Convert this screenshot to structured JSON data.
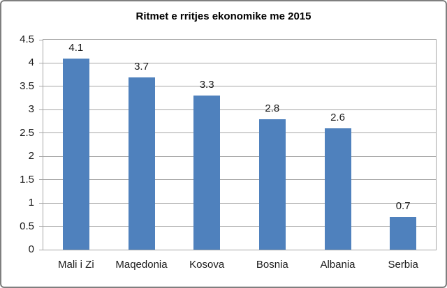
{
  "chart_data": {
    "type": "bar",
    "title": "Ritmet e rritjes ekonomike me 2015",
    "categories": [
      "Mali i Zi",
      "Maqedonia",
      "Kosova",
      "Bosnia",
      "Albania",
      "Serbia"
    ],
    "values": [
      4.1,
      3.7,
      3.3,
      2.8,
      2.6,
      0.7
    ],
    "value_labels": [
      "4.1",
      "3.7",
      "3.3",
      "2.8",
      "2.6",
      "0.7"
    ],
    "xlabel": "",
    "ylabel": "",
    "ylim": [
      0,
      4.5
    ],
    "ytick_step": 0.5,
    "yticks": [
      "0",
      "0.5",
      "1",
      "1.5",
      "2",
      "2.5",
      "3",
      "3.5",
      "4",
      "4.5"
    ],
    "grid": "horizontal",
    "legend": "none",
    "bar_color": "#4f81bd",
    "gridline_color": "#a6a6a6",
    "axis_line_color": "#a6a6a6",
    "chart_border_color": "#7f7f7f",
    "text_color": "#1a1a1a"
  }
}
